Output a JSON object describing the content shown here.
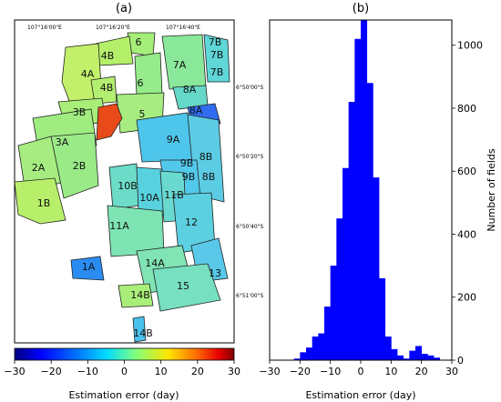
{
  "panels": {
    "a_label": "(a)",
    "b_label": "(b)"
  },
  "map": {
    "lon_labels": [
      "107°16'00\"E",
      "107°16'20\"E",
      "107°16'40\"E"
    ],
    "lat_labels": [
      "6°50'00\"S",
      "6°50'20\"S",
      "6°50'40\"S",
      "6°51'00\"S"
    ],
    "field_labels": [
      "6",
      "4B",
      "7B",
      "7A",
      "4A",
      "7B",
      "7B",
      "6",
      "4B",
      "8A",
      "3B",
      "5",
      "8A",
      "3A",
      "9A",
      "8B",
      "2A",
      "2B",
      "9B",
      "9B",
      "8B",
      "1B",
      "10B",
      "10A",
      "11B",
      "12",
      "11A",
      "1A",
      "14A",
      "13",
      "15",
      "14B",
      "14B"
    ],
    "colorbar": {
      "ticks": [
        "−30",
        "−20",
        "−10",
        "0",
        "10",
        "20",
        "30"
      ],
      "label": "Estimation error (day)",
      "colors": [
        "#00007f",
        "#0000ff",
        "#007fff",
        "#00dcff",
        "#7fff7f",
        "#ffe600",
        "#ff6a00",
        "#e80000",
        "#7f0000"
      ]
    }
  },
  "chart_data": {
    "type": "bar",
    "title": "(b)",
    "xlabel": "Estimation error (day)",
    "ylabel": "Number of fields",
    "xlim": [
      -30,
      30
    ],
    "ylim": [
      0,
      1080
    ],
    "xticks": [
      "−30",
      "−20",
      "−10",
      "0",
      "10",
      "20",
      "30"
    ],
    "yticks": [
      "0",
      "200",
      "400",
      "600",
      "800",
      "1000"
    ],
    "bar_color": "#0000ff",
    "bin_width": 2,
    "bin_starts": [
      -22,
      -20,
      -18,
      -16,
      -14,
      -12,
      -10,
      -8,
      -6,
      -4,
      -2,
      0,
      2,
      4,
      6,
      8,
      10,
      12,
      14,
      16,
      18,
      20,
      22,
      24
    ],
    "values": [
      5,
      25,
      40,
      75,
      85,
      170,
      300,
      450,
      610,
      820,
      1020,
      1080,
      880,
      580,
      260,
      75,
      35,
      15,
      5,
      30,
      45,
      20,
      15,
      8
    ]
  }
}
